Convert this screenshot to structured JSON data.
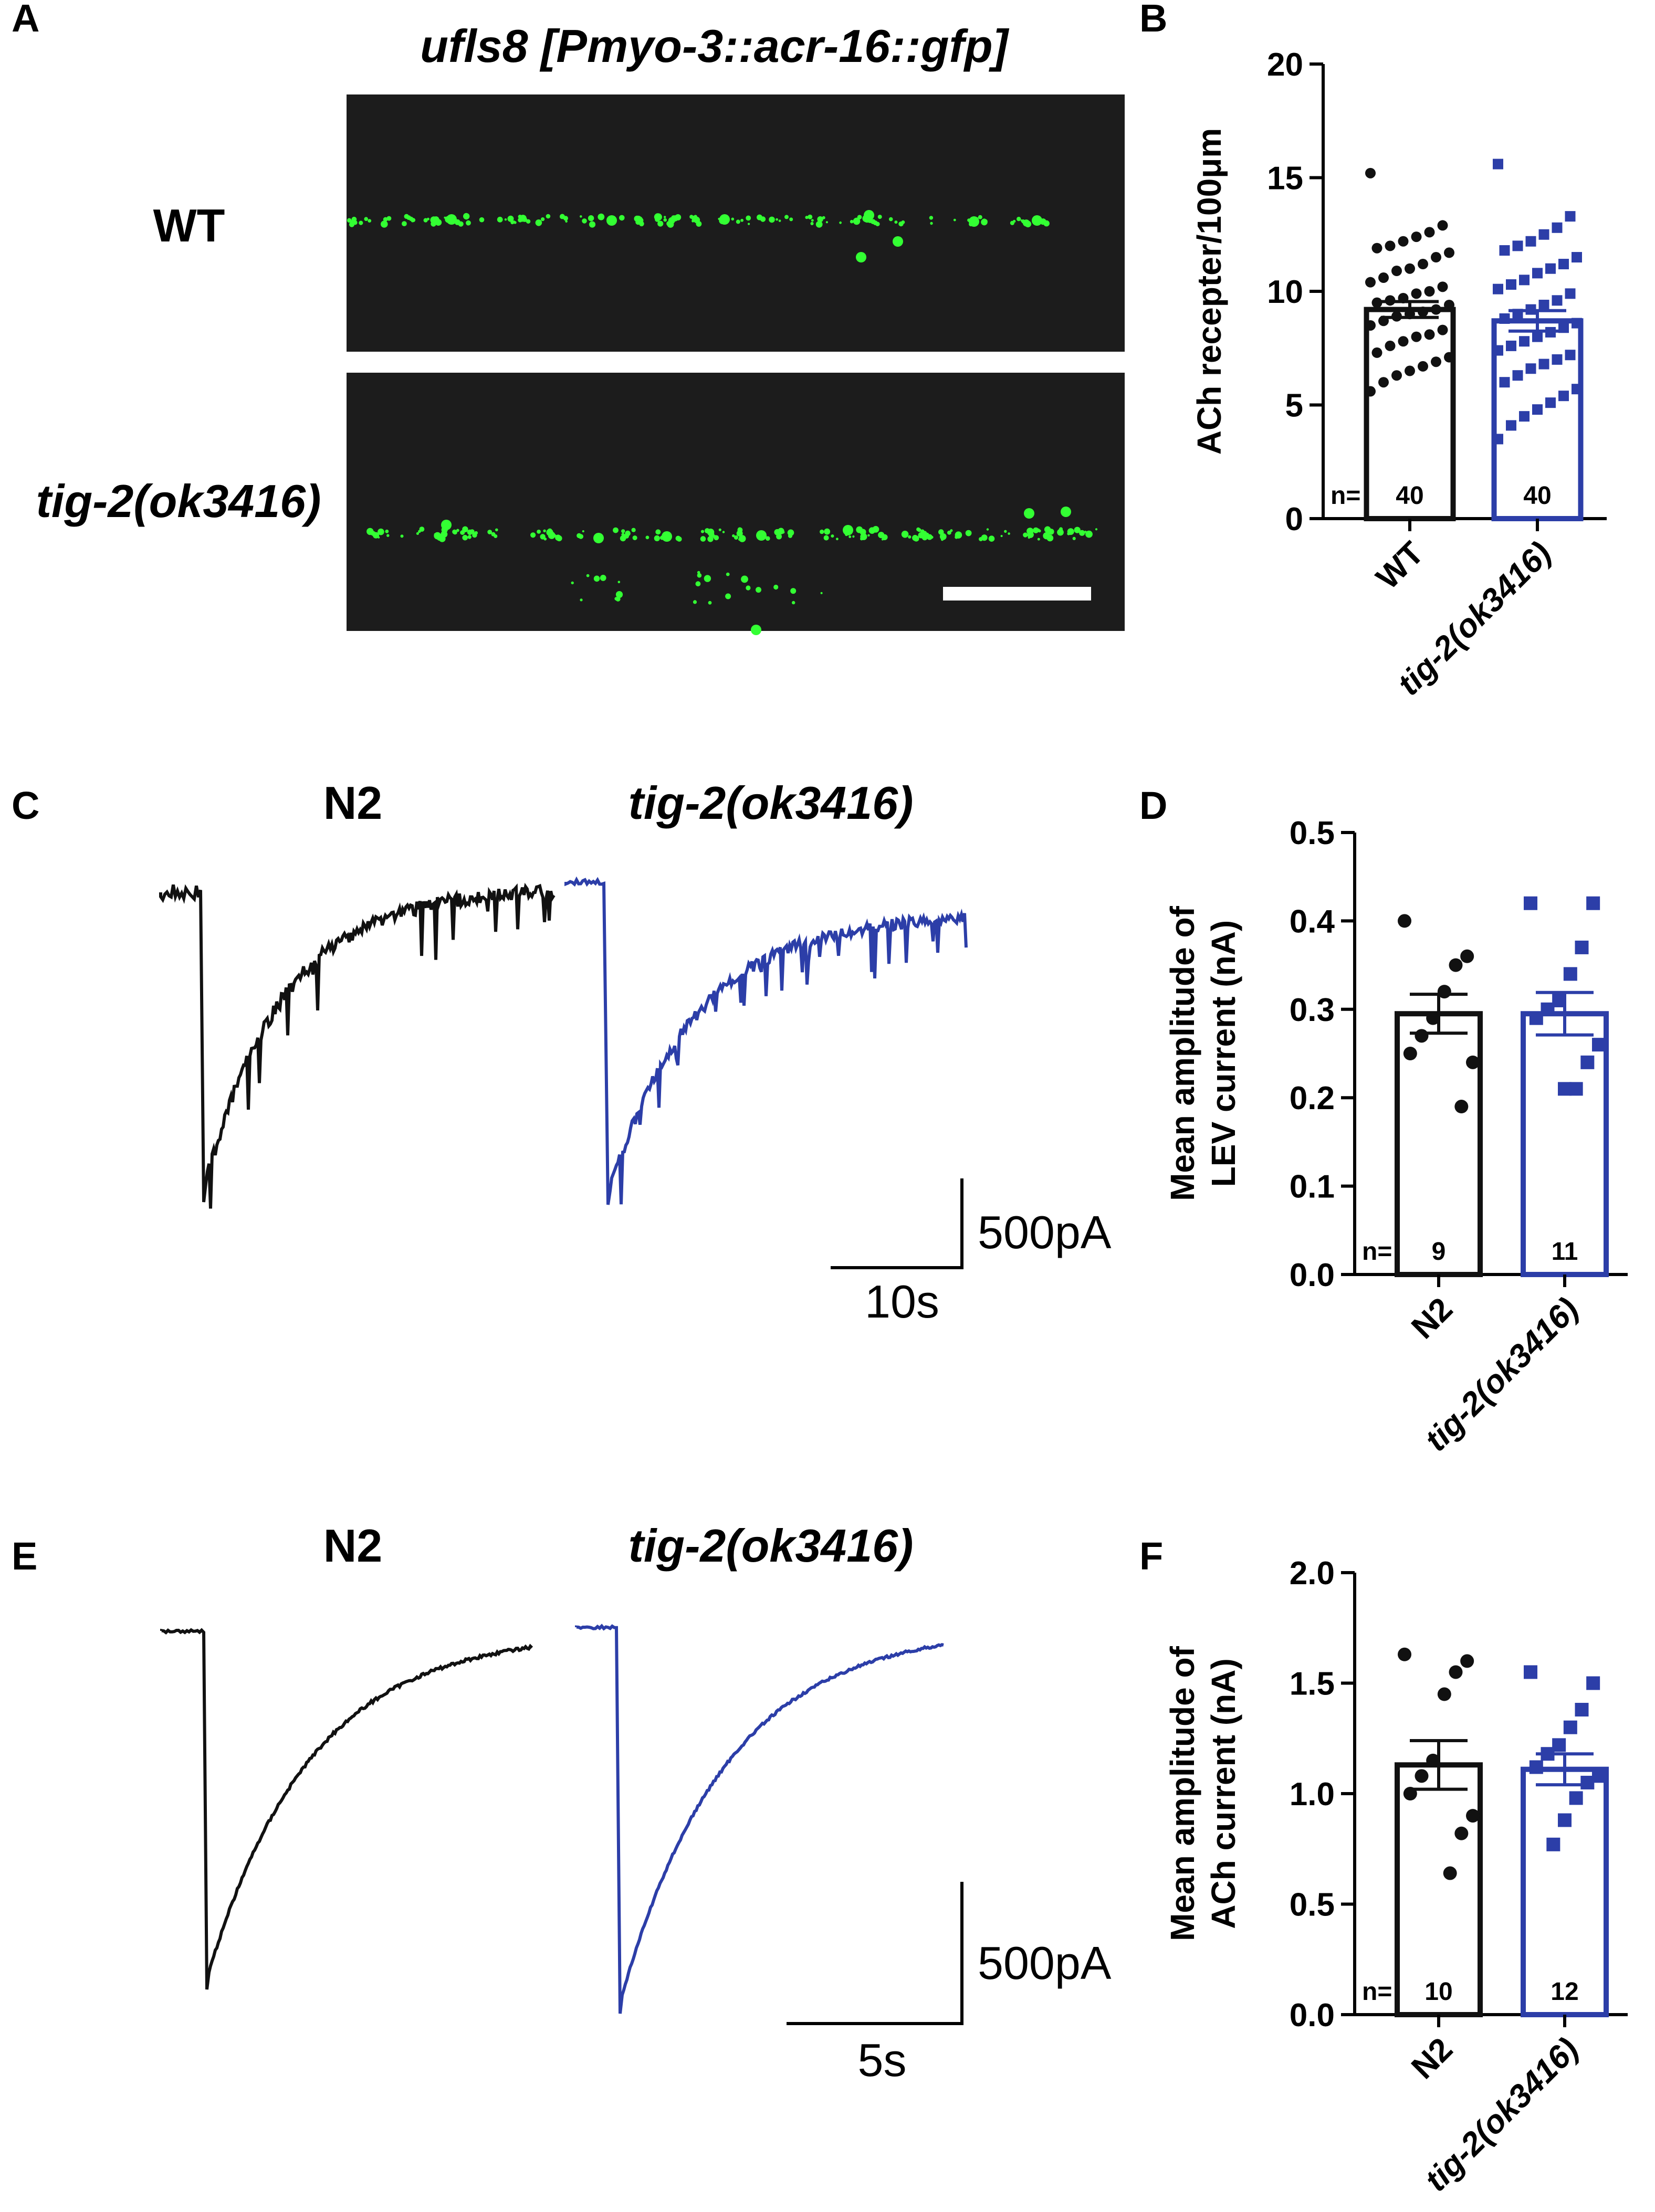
{
  "panel_labels": [
    "A",
    "B",
    "C",
    "D",
    "E",
    "F"
  ],
  "panel_a": {
    "title": "ufls8 [Pmyo-3::acr-16::gfp]",
    "row_labels": [
      "WT",
      "tig-2(ok3416)"
    ],
    "colors": {
      "background": "#1c1c1c",
      "puncta": "#33ff33",
      "scale_bar": "#ffffff"
    }
  },
  "panel_c": {
    "trace_labels": [
      "N2",
      "tig-2(ok3416)"
    ],
    "scale_y": "500pA",
    "scale_x": "10s",
    "colors": {
      "N2": "#111111",
      "tig2": "#2c3ea8"
    }
  },
  "panel_e": {
    "trace_labels": [
      "N2",
      "tig-2(ok3416)"
    ],
    "scale_y": "500pA",
    "scale_x": "5s",
    "colors": {
      "N2": "#111111",
      "tig2": "#2c3ea8"
    }
  },
  "chart_data": [
    {
      "panel": "B",
      "type": "bar",
      "categories": [
        "WT",
        "tig-2(ok3416)"
      ],
      "values": [
        9.2,
        8.7
      ],
      "sem": [
        0.35,
        0.45
      ],
      "ylabel": "ACh recepter/100μm",
      "ylim": [
        0,
        20
      ],
      "yticks": [
        0,
        5,
        10,
        15,
        20
      ],
      "n_prefix": "n=",
      "n": [
        "40",
        "40"
      ],
      "colors": [
        "#111111",
        "#2c3ea8"
      ],
      "points": [
        [
          15.2,
          12.9,
          12.6,
          12.4,
          12.2,
          12.0,
          11.9,
          11.7,
          11.5,
          11.2,
          11.0,
          10.9,
          10.6,
          10.4,
          10.2,
          10.0,
          9.9,
          9.7,
          9.6,
          9.5,
          9.4,
          9.2,
          9.1,
          9.0,
          8.9,
          8.7,
          8.5,
          8.3,
          8.1,
          8.0,
          7.8,
          7.6,
          7.3,
          7.1,
          6.9,
          6.7,
          6.5,
          6.3,
          6.0,
          5.6
        ],
        [
          15.6,
          13.3,
          12.8,
          12.5,
          12.2,
          12.0,
          11.8,
          11.5,
          11.2,
          11.0,
          10.8,
          10.5,
          10.3,
          10.1,
          9.9,
          9.6,
          9.4,
          9.2,
          9.0,
          8.8,
          8.6,
          8.4,
          8.2,
          8.0,
          7.8,
          7.6,
          7.4,
          7.2,
          7.0,
          6.8,
          6.6,
          6.3,
          6.0,
          5.7,
          5.4,
          5.1,
          4.8,
          4.5,
          4.1,
          3.5
        ]
      ]
    },
    {
      "panel": "D",
      "type": "bar",
      "categories": [
        "N2",
        "tig-2(ok3416)"
      ],
      "values": [
        0.295,
        0.295
      ],
      "sem": [
        0.022,
        0.024
      ],
      "ylabel": "Mean amplitude of\nLEV current (nA)",
      "ylim": [
        0,
        0.5
      ],
      "yticks": [
        "0.0",
        "0.1",
        "0.2",
        "0.3",
        "0.4",
        "0.5"
      ],
      "n_prefix": "n=",
      "n": [
        "9",
        "11"
      ],
      "colors": [
        "#111111",
        "#2c3ea8"
      ],
      "points": [
        [
          0.4,
          0.36,
          0.35,
          0.32,
          0.29,
          0.27,
          0.25,
          0.24,
          0.19
        ],
        [
          0.42,
          0.42,
          0.37,
          0.34,
          0.31,
          0.3,
          0.29,
          0.26,
          0.24,
          0.21,
          0.21
        ]
      ]
    },
    {
      "panel": "F",
      "type": "bar",
      "categories": [
        "N2",
        "tig-2(ok3416)"
      ],
      "values": [
        1.13,
        1.11
      ],
      "sem": [
        0.11,
        0.07
      ],
      "ylabel": "Mean amplitude of\nACh current (nA)",
      "ylim": [
        0,
        2.0
      ],
      "yticks": [
        "0.0",
        "0.5",
        "1.0",
        "1.5",
        "2.0"
      ],
      "n_prefix": "n=",
      "n": [
        "10",
        "12"
      ],
      "colors": [
        "#111111",
        "#2c3ea8"
      ],
      "points": [
        [
          1.63,
          1.6,
          1.55,
          1.45,
          1.15,
          1.08,
          1.0,
          0.9,
          0.82,
          0.64
        ],
        [
          1.55,
          1.5,
          1.38,
          1.3,
          1.22,
          1.18,
          1.12,
          1.08,
          1.05,
          0.98,
          0.88,
          0.77
        ]
      ]
    }
  ]
}
